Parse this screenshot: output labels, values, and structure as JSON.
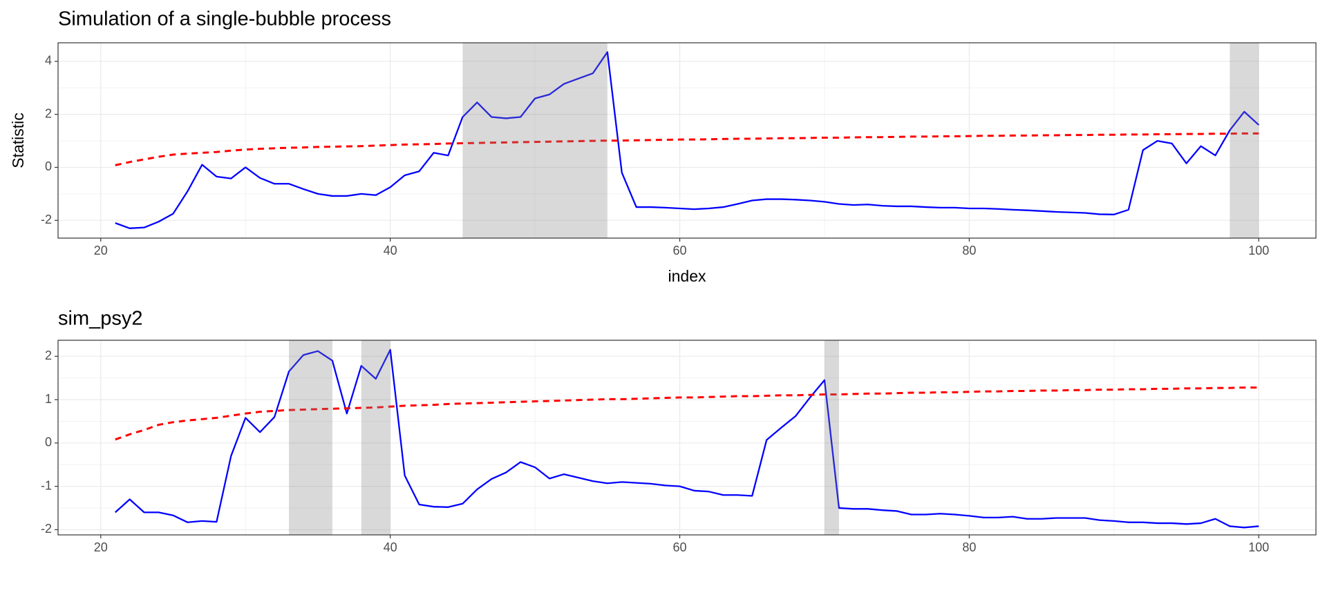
{
  "chart_data": [
    {
      "type": "line",
      "title": "Simulation of a single-bubble process",
      "ylabel": "Statistic",
      "xlabel": "index",
      "x": [
        21,
        22,
        23,
        24,
        25,
        26,
        27,
        28,
        29,
        30,
        31,
        32,
        33,
        34,
        35,
        36,
        37,
        38,
        39,
        40,
        41,
        42,
        43,
        44,
        45,
        46,
        47,
        48,
        49,
        50,
        51,
        52,
        53,
        54,
        55,
        56,
        57,
        58,
        59,
        60,
        61,
        62,
        63,
        64,
        65,
        66,
        67,
        68,
        69,
        70,
        71,
        72,
        73,
        74,
        75,
        76,
        77,
        78,
        79,
        80,
        81,
        82,
        83,
        84,
        85,
        86,
        87,
        88,
        89,
        90,
        91,
        92,
        93,
        94,
        95,
        96,
        97,
        98,
        99,
        100
      ],
      "series": [
        {
          "color": "#0000ff",
          "dashed": false,
          "values": [
            -2.1,
            -2.3,
            -2.27,
            -2.05,
            -1.75,
            -0.9,
            0.1,
            -0.35,
            -0.42,
            0.0,
            -0.4,
            -0.62,
            -0.62,
            -0.82,
            -1.0,
            -1.08,
            -1.08,
            -1.0,
            -1.05,
            -0.75,
            -0.3,
            -0.15,
            0.55,
            0.45,
            1.9,
            2.45,
            1.9,
            1.85,
            1.9,
            2.6,
            2.75,
            3.15,
            3.35,
            3.55,
            4.35,
            -0.2,
            -1.5,
            -1.5,
            -1.52,
            -1.55,
            -1.58,
            -1.55,
            -1.5,
            -1.38,
            -1.25,
            -1.2,
            -1.2,
            -1.22,
            -1.25,
            -1.3,
            -1.38,
            -1.42,
            -1.4,
            -1.45,
            -1.47,
            -1.47,
            -1.5,
            -1.52,
            -1.52,
            -1.55,
            -1.55,
            -1.57,
            -1.6,
            -1.62,
            -1.65,
            -1.68,
            -1.7,
            -1.72,
            -1.77,
            -1.78,
            -1.6,
            0.65,
            1.0,
            0.9,
            0.15,
            0.8,
            0.45,
            1.4,
            2.1,
            1.6
          ]
        },
        {
          "color": "#ff0000",
          "dashed": true,
          "values": [
            0.08,
            0.2,
            0.3,
            0.4,
            0.48,
            0.52,
            0.55,
            0.58,
            0.63,
            0.67,
            0.7,
            0.72,
            0.74,
            0.75,
            0.77,
            0.78,
            0.79,
            0.8,
            0.82,
            0.84,
            0.86,
            0.87,
            0.88,
            0.9,
            0.91,
            0.92,
            0.93,
            0.94,
            0.95,
            0.96,
            0.97,
            0.98,
            0.99,
            1.0,
            1.01,
            1.01,
            1.02,
            1.03,
            1.04,
            1.05,
            1.05,
            1.06,
            1.07,
            1.08,
            1.08,
            1.09,
            1.1,
            1.1,
            1.11,
            1.12,
            1.12,
            1.13,
            1.14,
            1.14,
            1.15,
            1.16,
            1.16,
            1.17,
            1.17,
            1.18,
            1.19,
            1.19,
            1.2,
            1.2,
            1.21,
            1.21,
            1.22,
            1.22,
            1.23,
            1.23,
            1.24,
            1.24,
            1.25,
            1.25,
            1.26,
            1.26,
            1.27,
            1.27,
            1.28,
            1.28
          ]
        }
      ],
      "shaded": [
        [
          45,
          55
        ],
        [
          98,
          100
        ]
      ],
      "shade_color": "#808080",
      "xlim": [
        17.05,
        103.95
      ],
      "xticks": [
        20,
        40,
        60,
        80,
        100
      ],
      "ylim": [
        -2.67,
        4.7
      ],
      "yticks": [
        -2,
        0,
        2,
        4
      ],
      "grid": true
    },
    {
      "type": "line",
      "title": "sim_psy2",
      "x": [
        21,
        22,
        23,
        24,
        25,
        26,
        27,
        28,
        29,
        30,
        31,
        32,
        33,
        34,
        35,
        36,
        37,
        38,
        39,
        40,
        41,
        42,
        43,
        44,
        45,
        46,
        47,
        48,
        49,
        50,
        51,
        52,
        53,
        54,
        55,
        56,
        57,
        58,
        59,
        60,
        61,
        62,
        63,
        64,
        65,
        66,
        67,
        68,
        69,
        70,
        71,
        72,
        73,
        74,
        75,
        76,
        77,
        78,
        79,
        80,
        81,
        82,
        83,
        84,
        85,
        86,
        87,
        88,
        89,
        90,
        91,
        92,
        93,
        94,
        95,
        96,
        97,
        98,
        99,
        100
      ],
      "series": [
        {
          "color": "#0000ff",
          "dashed": false,
          "values": [
            -1.6,
            -1.3,
            -1.6,
            -1.6,
            -1.67,
            -1.83,
            -1.8,
            -1.82,
            -0.3,
            0.58,
            0.25,
            0.6,
            1.65,
            2.03,
            2.12,
            1.9,
            0.68,
            1.78,
            1.48,
            2.15,
            -0.75,
            -1.42,
            -1.47,
            -1.48,
            -1.4,
            -1.07,
            -0.83,
            -0.68,
            -0.44,
            -0.56,
            -0.82,
            -0.72,
            -0.8,
            -0.88,
            -0.93,
            -0.9,
            -0.92,
            -0.94,
            -0.98,
            -1.0,
            -1.1,
            -1.12,
            -1.2,
            -1.2,
            -1.22,
            0.07,
            0.35,
            0.62,
            1.05,
            1.45,
            -1.5,
            -1.52,
            -1.52,
            -1.55,
            -1.57,
            -1.65,
            -1.65,
            -1.63,
            -1.65,
            -1.68,
            -1.72,
            -1.72,
            -1.7,
            -1.75,
            -1.75,
            -1.73,
            -1.73,
            -1.73,
            -1.78,
            -1.8,
            -1.83,
            -1.83,
            -1.85,
            -1.85,
            -1.87,
            -1.85,
            -1.75,
            -1.92,
            -1.95,
            -1.92
          ]
        },
        {
          "color": "#ff0000",
          "dashed": true,
          "values": [
            0.08,
            0.2,
            0.3,
            0.42,
            0.48,
            0.52,
            0.55,
            0.58,
            0.63,
            0.68,
            0.72,
            0.74,
            0.76,
            0.77,
            0.78,
            0.79,
            0.8,
            0.81,
            0.82,
            0.84,
            0.86,
            0.87,
            0.88,
            0.9,
            0.91,
            0.92,
            0.93,
            0.94,
            0.95,
            0.96,
            0.97,
            0.98,
            0.99,
            1.0,
            1.01,
            1.01,
            1.02,
            1.03,
            1.04,
            1.05,
            1.05,
            1.06,
            1.07,
            1.08,
            1.08,
            1.09,
            1.1,
            1.1,
            1.11,
            1.12,
            1.12,
            1.13,
            1.14,
            1.14,
            1.15,
            1.16,
            1.16,
            1.17,
            1.17,
            1.18,
            1.19,
            1.19,
            1.2,
            1.2,
            1.21,
            1.21,
            1.22,
            1.22,
            1.23,
            1.23,
            1.24,
            1.24,
            1.25,
            1.25,
            1.26,
            1.26,
            1.27,
            1.27,
            1.28,
            1.28
          ]
        }
      ],
      "shaded": [
        [
          33,
          36
        ],
        [
          38,
          40
        ],
        [
          70,
          71
        ]
      ],
      "shade_color": "#808080",
      "xlim": [
        17.05,
        103.95
      ],
      "xticks": [
        20,
        40,
        60,
        80,
        100
      ],
      "ylim": [
        -2.12,
        2.37
      ],
      "yticks": [
        -2,
        -1,
        0,
        1,
        2
      ],
      "grid": true
    }
  ]
}
